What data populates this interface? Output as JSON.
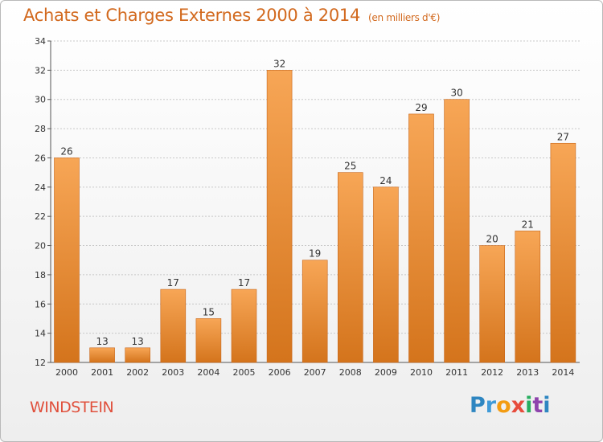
{
  "title": "Achats et Charges Externes 2000 à 2014",
  "subtitle": "(en milliers d'€)",
  "place": "WINDSTEIN",
  "brand": {
    "text": "Proxiti",
    "letters": [
      {
        "ch": "P",
        "color": "#2e86c1"
      },
      {
        "ch": "r",
        "color": "#3f9ad8"
      },
      {
        "ch": "o",
        "color": "#f39c12"
      },
      {
        "ch": "x",
        "color": "#e74c3c"
      },
      {
        "ch": "i",
        "color": "#27ae60"
      },
      {
        "ch": "t",
        "color": "#8e44ad"
      },
      {
        "ch": "i",
        "color": "#2e86c1"
      }
    ]
  },
  "colors": {
    "bar_light": "#f7a656",
    "bar_dark": "#d4741c",
    "title": "#d2691e",
    "place": "#e0503c",
    "grid": "#c8c8c8"
  },
  "chart_data": {
    "type": "bar",
    "categories": [
      "2000",
      "2001",
      "2002",
      "2003",
      "2004",
      "2005",
      "2006",
      "2007",
      "2008",
      "2009",
      "2010",
      "2011",
      "2012",
      "2013",
      "2014"
    ],
    "values": [
      26,
      13,
      13,
      17,
      15,
      17,
      32,
      19,
      25,
      24,
      29,
      30,
      20,
      21,
      27
    ],
    "ylim": [
      12,
      34
    ],
    "yticks": [
      12,
      14,
      16,
      18,
      20,
      22,
      24,
      26,
      28,
      30,
      32,
      34
    ],
    "grid": true,
    "data_labels": true
  }
}
